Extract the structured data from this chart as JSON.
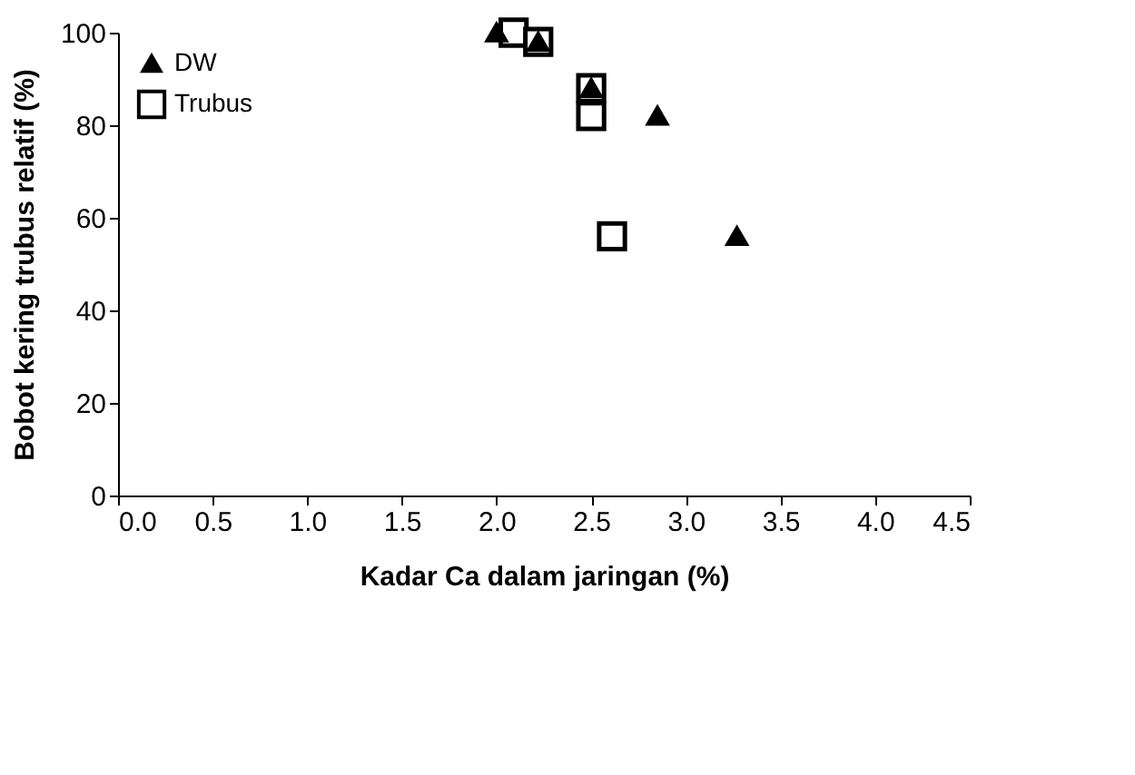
{
  "chart_data": {
    "type": "scatter",
    "xlabel": "Kadar Ca dalam jaringan (%)",
    "ylabel": "Bobot kering trubus relatif (%)",
    "xlim": [
      0,
      4.5
    ],
    "xticks": [
      {
        "value": 0,
        "label": "0.0"
      },
      0.5,
      {
        "value": 1,
        "label": "1.0"
      },
      1.5,
      {
        "value": 2,
        "label": "2.0"
      },
      2.5,
      {
        "value": 3,
        "label": "3.0"
      },
      3.5,
      {
        "value": 4,
        "label": "4.0"
      },
      4.5
    ],
    "ylim": [
      0,
      100
    ],
    "yticks": [
      0,
      20,
      40,
      60,
      80,
      100
    ],
    "grid": false,
    "legend": "left",
    "series": [
      {
        "name": "DW",
        "color": "#000000",
        "marker": "triangle",
        "x": [
          2.0,
          2.22,
          2.5,
          2.85,
          3.27
        ],
        "values": [
          100,
          98,
          88,
          82,
          56
        ]
      },
      {
        "name": "Trubus",
        "color": "#000000",
        "marker": "square",
        "x": [
          2.09,
          2.22,
          2.5,
          2.5,
          2.61
        ],
        "values": [
          100,
          98,
          88,
          82,
          56
        ]
      }
    ]
  }
}
